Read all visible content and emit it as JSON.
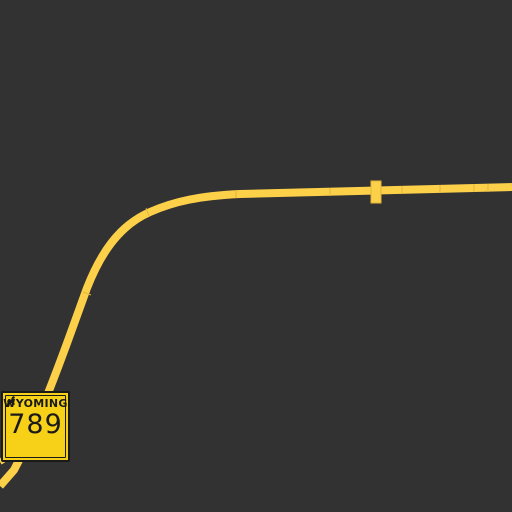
{
  "map": {
    "background_color": "#323232",
    "road_color": "#fdd04a",
    "road_joint_color": "#e0b53a"
  },
  "route_shield": {
    "state": "WYOMING",
    "number": "789",
    "shield_color": "#f7d117",
    "icon": "bucking-horse-icon"
  }
}
